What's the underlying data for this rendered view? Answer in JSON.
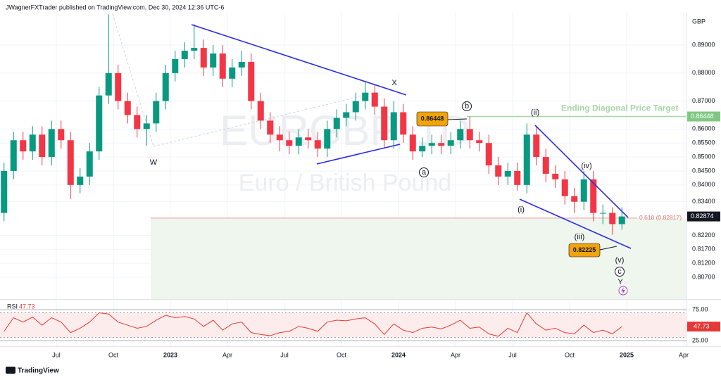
{
  "header": "JWagnerFXTrader published on TradingView.com, Dec 30, 2024 12:36 UTC-6",
  "currency": "GBP",
  "watermark": {
    "symbol": "EURGBP, 1D",
    "name": "Euro / British Pound"
  },
  "footer": "TradingView",
  "chart_data": {
    "type": "candlestick",
    "categories": [
      null,
      null,
      null,
      null,
      null,
      null,
      "Jul",
      null,
      null,
      null,
      null,
      null,
      "Oct",
      null,
      null,
      null,
      null,
      null,
      "2023",
      null,
      null,
      null,
      null,
      null,
      "Apr",
      null,
      null,
      null,
      null,
      null,
      "Jul",
      null,
      null,
      null,
      null,
      null,
      "Oct",
      null,
      null,
      null,
      null,
      null,
      "2024",
      null,
      null,
      null,
      null,
      null,
      "Apr",
      null,
      null,
      null,
      null,
      null,
      "Jul",
      null,
      null,
      null,
      null,
      null,
      "Oct",
      null,
      null,
      null,
      null,
      null,
      "2025",
      null,
      null,
      null,
      null,
      null,
      "Apr"
    ],
    "open": [
      0.83,
      0.845,
      0.856,
      0.852,
      0.858,
      0.85,
      0.86,
      0.856,
      0.84,
      0.843,
      0.852,
      0.872,
      0.88,
      0.87,
      0.865,
      0.86,
      0.862,
      0.87,
      0.88,
      0.885,
      0.888,
      0.889,
      0.882,
      0.887,
      0.878,
      0.882,
      0.884,
      0.87,
      0.863,
      0.858,
      0.856,
      0.854,
      0.857,
      0.856,
      0.853,
      0.86,
      0.864,
      0.866,
      0.87,
      0.873,
      0.868,
      0.856,
      0.866,
      0.858,
      0.852,
      0.854,
      0.855,
      0.854,
      0.856,
      0.86,
      0.856,
      0.855,
      0.847,
      0.843,
      0.845,
      0.84,
      0.858,
      0.85,
      0.844,
      0.842,
      0.836,
      0.834,
      0.842,
      0.83,
      0.83,
      0.826,
      null,
      null,
      null,
      null,
      null,
      null,
      null
    ],
    "high": [
      0.848,
      0.859,
      0.859,
      0.861,
      0.861,
      0.863,
      0.863,
      0.859,
      0.846,
      0.855,
      0.875,
      0.901,
      0.883,
      0.873,
      0.868,
      0.865,
      0.873,
      0.883,
      0.888,
      0.891,
      0.8975,
      0.892,
      0.89,
      0.89,
      0.885,
      0.888,
      0.887,
      0.873,
      0.866,
      0.861,
      0.859,
      0.86,
      0.86,
      0.859,
      0.863,
      0.867,
      0.869,
      0.873,
      0.877,
      0.876,
      0.871,
      0.87,
      0.869,
      0.861,
      0.857,
      0.858,
      0.858,
      0.859,
      0.863,
      0.8645,
      0.859,
      0.858,
      0.85,
      0.848,
      0.848,
      0.862,
      0.861,
      0.853,
      0.847,
      0.845,
      0.839,
      0.845,
      0.845,
      0.833,
      0.832,
      0.832,
      null,
      null,
      null,
      null,
      null,
      null,
      null
    ],
    "low": [
      0.827,
      0.842,
      0.849,
      0.849,
      0.847,
      0.847,
      0.853,
      0.835,
      0.837,
      0.84,
      0.849,
      0.869,
      0.867,
      0.862,
      0.857,
      0.854,
      0.859,
      0.867,
      0.877,
      0.882,
      0.885,
      0.879,
      0.879,
      0.875,
      0.875,
      0.879,
      0.867,
      0.86,
      0.855,
      0.852,
      0.851,
      0.851,
      0.853,
      0.85,
      0.85,
      0.857,
      0.861,
      0.863,
      0.867,
      0.865,
      0.853,
      0.853,
      0.855,
      0.849,
      0.85,
      0.851,
      0.851,
      0.851,
      0.853,
      0.853,
      0.852,
      0.844,
      0.84,
      0.84,
      0.838,
      0.837,
      0.847,
      0.841,
      0.839,
      0.833,
      0.83,
      0.831,
      0.827,
      0.826,
      0.8222,
      0.824,
      null,
      null,
      null,
      null,
      null,
      null,
      null
    ],
    "close": [
      0.845,
      0.856,
      0.852,
      0.858,
      0.85,
      0.86,
      0.856,
      0.84,
      0.843,
      0.852,
      0.872,
      0.88,
      0.87,
      0.865,
      0.86,
      0.862,
      0.87,
      0.88,
      0.885,
      0.888,
      0.889,
      0.882,
      0.887,
      0.878,
      0.882,
      0.884,
      0.87,
      0.863,
      0.858,
      0.856,
      0.854,
      0.857,
      0.856,
      0.853,
      0.86,
      0.864,
      0.866,
      0.87,
      0.873,
      0.868,
      0.856,
      0.866,
      0.858,
      0.852,
      0.854,
      0.855,
      0.854,
      0.856,
      0.86,
      0.856,
      0.855,
      0.847,
      0.843,
      0.845,
      0.84,
      0.858,
      0.85,
      0.844,
      0.842,
      0.836,
      0.834,
      0.842,
      0.83,
      0.83,
      0.826,
      0.82874,
      null,
      null,
      null,
      null,
      null,
      null,
      null
    ],
    "up_color": "#089981",
    "down_color": "#f23645",
    "ylim": [
      0.7992,
      0.9016
    ],
    "yticks": [
      {
        "value": 0.89,
        "label": "0.89000"
      },
      {
        "value": 0.88,
        "label": "0.88000"
      },
      {
        "value": 0.87,
        "label": "0.87000"
      },
      {
        "value": 0.86,
        "label": "0.86000"
      },
      {
        "value": 0.855,
        "label": "0.85500"
      },
      {
        "value": 0.85,
        "label": "0.85000"
      },
      {
        "value": 0.845,
        "label": "0.84500"
      },
      {
        "value": 0.84,
        "label": "0.84000"
      },
      {
        "value": 0.834,
        "label": "0.83400"
      },
      {
        "value": 0.822,
        "label": "0.82200"
      },
      {
        "value": 0.817,
        "label": "0.81700"
      },
      {
        "value": 0.812,
        "label": "0.81200"
      },
      {
        "value": 0.807,
        "label": "0.80700"
      }
    ],
    "grid": true,
    "target": {
      "label": "Ending Diagonal Price Target",
      "value": 0.86448,
      "color": "#a5d6a7"
    },
    "low_mark": 0.82225,
    "fib": {
      "value": 0.82817,
      "label": "0.618 (0.82817)",
      "color": "#ef9a9a"
    },
    "wave_labels": [
      "W",
      "X",
      "Y",
      "(i)",
      "(ii)",
      "(iii)",
      "(iv)",
      "(v)",
      "a",
      "b",
      "c"
    ],
    "rsi": {
      "name": "RSI",
      "color": "#e53935",
      "ylim": [
        16,
        91
      ],
      "yticks": [
        {
          "value": 75,
          "label": "75.00"
        },
        {
          "value": 25,
          "label": "25.00"
        }
      ],
      "band": [
        30,
        70
      ],
      "values": [
        40,
        62,
        55,
        63,
        50,
        62,
        55,
        38,
        45,
        55,
        70,
        68,
        55,
        50,
        45,
        48,
        58,
        66,
        62,
        64,
        60,
        48,
        58,
        42,
        52,
        55,
        38,
        35,
        33,
        38,
        40,
        48,
        45,
        40,
        55,
        58,
        57,
        60,
        62,
        52,
        35,
        52,
        42,
        38,
        45,
        47,
        44,
        50,
        58,
        45,
        47,
        36,
        32,
        45,
        38,
        70,
        52,
        42,
        45,
        38,
        36,
        50,
        38,
        42,
        36,
        47.73,
        null,
        null,
        null,
        null,
        null,
        null,
        null
      ]
    }
  }
}
